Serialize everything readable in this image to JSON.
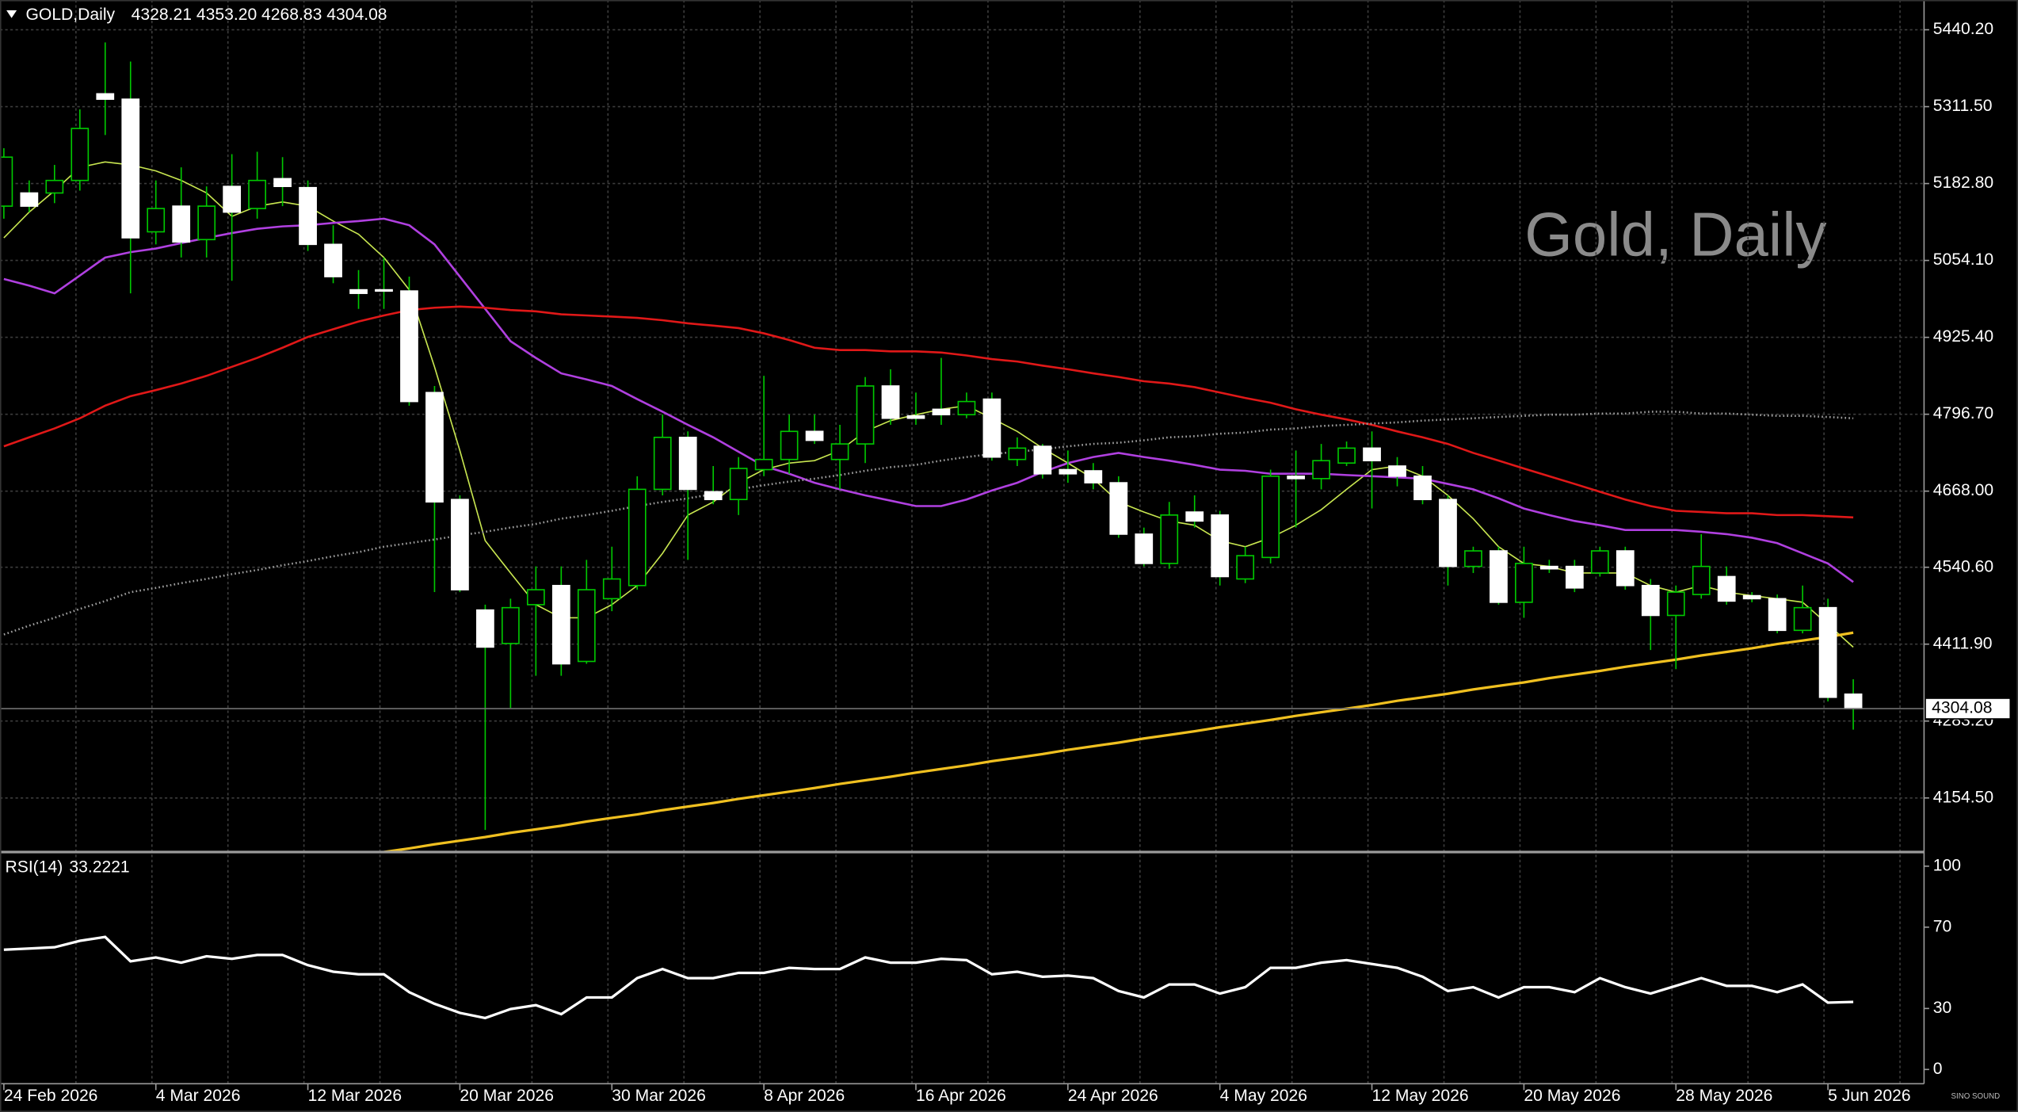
{
  "chart_data": {
    "type": "candlestick",
    "header": {
      "symbol": "GOLD,Daily",
      "ohlc": "4328.21 4353.20 4268.83 4304.08"
    },
    "watermark": "Gold, Daily",
    "logo": "SINO SOUND",
    "categories": [
      "24 Feb 2026",
      null,
      null,
      null,
      null,
      null,
      "4 Mar 2026",
      null,
      null,
      null,
      null,
      null,
      "12 Mar 2026",
      null,
      null,
      null,
      null,
      null,
      "20 Mar 2026",
      null,
      null,
      null,
      null,
      null,
      "30 Mar 2026",
      null,
      null,
      null,
      null,
      null,
      "8 Apr 2026",
      null,
      null,
      null,
      null,
      null,
      "16 Apr 2026",
      null,
      null,
      null,
      null,
      null,
      "24 Apr 2026",
      null,
      null,
      null,
      null,
      null,
      "4 May 2026",
      null,
      null,
      null,
      null,
      null,
      "12 May 2026",
      null,
      null,
      null,
      null,
      null,
      "20 May 2026",
      null,
      null,
      null,
      null,
      null,
      "28 May 2026",
      null,
      null,
      null,
      null,
      null,
      "5 Jun 2026",
      null
    ],
    "open": [
      5145,
      5167,
      5167,
      5188,
      5333,
      5324,
      5102,
      5145,
      5089,
      5178,
      5141,
      5191,
      5176,
      5081,
      5005,
      5005,
      5003,
      4833,
      4654,
      4469,
      4413,
      4478,
      4510,
      4383,
      4488,
      4510,
      4671,
      4758,
      4667,
      4654,
      4704,
      4721,
      4768,
      4721,
      4747,
      4844,
      4794,
      4805,
      4796,
      4822,
      4721,
      4743,
      4704,
      4702,
      4682,
      4596,
      4547,
      4633,
      4628,
      4521,
      4557,
      4693,
      4689,
      4715,
      4740,
      4710,
      4693,
      4654,
      4542,
      4568,
      4482,
      4542,
      4542,
      4531,
      4568,
      4510,
      4460,
      4495,
      4525,
      4493,
      4488,
      4435,
      4473,
      4328.21
    ],
    "high": [
      5242,
      5188,
      5214,
      5307,
      5419,
      5387,
      5188,
      5210,
      5178,
      5232,
      5236,
      5227,
      5188,
      5113,
      5038,
      5059,
      5027,
      4844,
      4661,
      4478,
      4488,
      4542,
      4542,
      4553,
      4575,
      4693,
      4796,
      4768,
      4710,
      4725,
      4861,
      4796,
      4796,
      4779,
      4859,
      4872,
      4833,
      4891,
      4833,
      4833,
      4758,
      4747,
      4736,
      4715,
      4693,
      4607,
      4650,
      4661,
      4635,
      4575,
      4704,
      4736,
      4747,
      4751,
      4768,
      4725,
      4710,
      4661,
      4575,
      4575,
      4575,
      4553,
      4553,
      4575,
      4575,
      4521,
      4510,
      4596,
      4542,
      4499,
      4495,
      4510,
      4488,
      4353.2
    ],
    "low": [
      5124,
      5135,
      5150,
      5171,
      5264,
      4999,
      5081,
      5059,
      5059,
      5020,
      5124,
      5145,
      5070,
      5016,
      4973,
      4973,
      4811,
      4499,
      4499,
      4101,
      4305,
      4359,
      4359,
      4379,
      4467,
      4503,
      4661,
      4553,
      4646,
      4628,
      4693,
      4697,
      4747,
      4671,
      4715,
      4779,
      4779,
      4779,
      4790,
      4719,
      4710,
      4689,
      4682,
      4671,
      4590,
      4542,
      4538,
      4607,
      4510,
      4514,
      4547,
      4607,
      4671,
      4710,
      4639,
      4676,
      4646,
      4510,
      4531,
      4478,
      4456,
      4531,
      4499,
      4525,
      4503,
      4402,
      4370,
      4488,
      4478,
      4482,
      4430,
      4430,
      4316,
      4268.83
    ],
    "close": [
      5227,
      5145,
      5188,
      5275,
      5324,
      5092,
      5141,
      5085,
      5145,
      5135,
      5188,
      5178,
      5081,
      5027,
      4999,
      5003,
      4818,
      4650,
      4503,
      4407,
      4473,
      4503,
      4379,
      4503,
      4521,
      4671,
      4758,
      4671,
      4654,
      4706,
      4721,
      4768,
      4753,
      4747,
      4844,
      4790,
      4790,
      4796,
      4818,
      4725,
      4740,
      4697,
      4697,
      4682,
      4596,
      4547,
      4628,
      4618,
      4525,
      4560,
      4693,
      4689,
      4719,
      4740,
      4719,
      4693,
      4654,
      4542,
      4568,
      4482,
      4547,
      4538,
      4506,
      4568,
      4510,
      4460,
      4499,
      4542,
      4484,
      4488,
      4435,
      4473,
      4323,
      4304.08
    ],
    "up_color": "#000000",
    "down_color": "#ffffff",
    "wick_color": "#00c800",
    "series": [
      {
        "color": "#c8e650",
        "values": [
          5092,
          5135,
          5171,
          5210,
          5219,
          5214,
          5204,
          5188,
          5167,
          5128,
          5145,
          5152,
          5145,
          5120,
          5098,
          5059,
          5005,
          4876,
          4736,
          4585,
          4531,
          4478,
          4456,
          4456,
          4478,
          4510,
          4564,
          4628,
          4650,
          4682,
          4704,
          4715,
          4719,
          4736,
          4768,
          4786,
          4796,
          4805,
          4811,
          4790,
          4768,
          4740,
          4715,
          4689,
          4650,
          4633,
          4618,
          4611,
          4585,
          4575,
          4590,
          4611,
          4637,
          4671,
          4704,
          4710,
          4693,
          4661,
          4622,
          4575,
          4547,
          4542,
          4531,
          4531,
          4531,
          4510,
          4499,
          4510,
          4499,
          4493,
          4488,
          4482,
          4445,
          4407
        ]
      },
      {
        "color": "#b040e0",
        "values": [
          5023,
          5012,
          4999,
          5029,
          5059,
          5068,
          5074,
          5083,
          5092,
          5100,
          5107,
          5111,
          5113,
          5117,
          5120,
          5124,
          5113,
          5081,
          5027,
          4973,
          4919,
          4891,
          4865,
          4855,
          4844,
          4822,
          4801,
          4779,
          4758,
          4734,
          4710,
          4697,
          4682,
          4671,
          4661,
          4652,
          4643,
          4643,
          4654,
          4669,
          4682,
          4700,
          4715,
          4725,
          4732,
          4725,
          4719,
          4712,
          4704,
          4702,
          4697,
          4697,
          4697,
          4695,
          4693,
          4691,
          4689,
          4680,
          4671,
          4656,
          4639,
          4628,
          4618,
          4611,
          4603,
          4603,
          4603,
          4600,
          4596,
          4590,
          4581,
          4564,
          4547,
          4516
        ]
      },
      {
        "color": "#e01818",
        "values": [
          4743,
          4758,
          4773,
          4790,
          4811,
          4827,
          4837,
          4848,
          4861,
          4876,
          4891,
          4908,
          4926,
          4939,
          4952,
          4962,
          4971,
          4975,
          4977,
          4975,
          4971,
          4969,
          4964,
          4962,
          4960,
          4958,
          4954,
          4949,
          4945,
          4941,
          4932,
          4921,
          4908,
          4904,
          4904,
          4902,
          4902,
          4900,
          4895,
          4889,
          4885,
          4878,
          4872,
          4865,
          4859,
          4852,
          4848,
          4842,
          4833,
          4824,
          4816,
          4805,
          4796,
          4788,
          4779,
          4768,
          4758,
          4747,
          4732,
          4719,
          4706,
          4693,
          4680,
          4667,
          4654,
          4643,
          4635,
          4633,
          4631,
          4631,
          4628,
          4628,
          4626,
          4624
        ]
      },
      {
        "color": "#a0a0a0",
        "dashed": true,
        "values": [
          4428,
          4443,
          4456,
          4471,
          4484,
          4499,
          4506,
          4514,
          4521,
          4529,
          4536,
          4544,
          4551,
          4559,
          4566,
          4575,
          4581,
          4587,
          4594,
          4600,
          4607,
          4613,
          4622,
          4628,
          4635,
          4643,
          4650,
          4656,
          4663,
          4671,
          4678,
          4684,
          4689,
          4695,
          4702,
          4708,
          4712,
          4719,
          4725,
          4730,
          4734,
          4738,
          4743,
          4747,
          4749,
          4753,
          4758,
          4760,
          4764,
          4766,
          4771,
          4773,
          4777,
          4779,
          4781,
          4783,
          4786,
          4788,
          4790,
          4792,
          4794,
          4796,
          4796,
          4798,
          4798,
          4801,
          4801,
          4798,
          4798,
          4796,
          4794,
          4794,
          4792,
          4790
        ]
      },
      {
        "color": "#f0c020",
        "values": [
          null,
          null,
          null,
          null,
          null,
          null,
          null,
          null,
          null,
          null,
          null,
          null,
          null,
          null,
          null,
          4064,
          4070,
          4077,
          4083,
          4089,
          4096,
          4102,
          4108,
          4115,
          4121,
          4127,
          4134,
          4140,
          4146,
          4153,
          4159,
          4165,
          4171,
          4178,
          4184,
          4190,
          4197,
          4203,
          4209,
          4216,
          4222,
          4228,
          4235,
          4241,
          4247,
          4254,
          4260,
          4266,
          4273,
          4279,
          4285,
          4292,
          4298,
          4304,
          4310,
          4317,
          4323,
          4329,
          4336,
          4342,
          4348,
          4355,
          4361,
          4367,
          4374,
          4380,
          4386,
          4393,
          4399,
          4405,
          4412,
          4418,
          4424,
          4431
        ]
      }
    ],
    "ylim": [
      4064,
      5490
    ],
    "yticks": [
      {
        "value": 5440.2,
        "label": "5440.20"
      },
      {
        "value": 5311.5,
        "label": "5311.50"
      },
      {
        "value": 5182.8,
        "label": "5182.80"
      },
      {
        "value": 5054.1,
        "label": "5054.10"
      },
      {
        "value": 4925.4,
        "label": "4925.40"
      },
      {
        "value": 4796.7,
        "label": "4796.70"
      },
      {
        "value": 4668,
        "label": "4668.00"
      },
      {
        "value": 4540.6,
        "label": "4540.60"
      },
      {
        "value": 4411.9,
        "label": "4411.90"
      },
      {
        "value": 4283.2,
        "label": "4283.20"
      },
      {
        "value": 4154.5,
        "label": "4154.50"
      }
    ],
    "grid": true,
    "rsi": {
      "label": "RSI(14)",
      "color": "#ffffff",
      "values": [
        58.9,
        59.5,
        60.1,
        63.3,
        65.2,
        53.2,
        55.1,
        52.5,
        55.7,
        54.4,
        56.3,
        56.3,
        51.3,
        48.1,
        46.8,
        46.8,
        38.0,
        32.3,
        27.8,
        25.3,
        29.7,
        31.6,
        27.2,
        35.4,
        35.4,
        44.9,
        49.4,
        44.9,
        44.9,
        47.5,
        47.5,
        50.0,
        49.4,
        49.4,
        55.1,
        52.5,
        52.5,
        54.4,
        53.8,
        46.8,
        48.1,
        45.6,
        46.2,
        44.9,
        38.6,
        35.4,
        41.8,
        41.8,
        37.3,
        40.5,
        50.0,
        50.0,
        52.5,
        53.8,
        51.9,
        50.0,
        45.6,
        38.6,
        40.5,
        35.4,
        40.5,
        40.5,
        38.0,
        44.9,
        40.5,
        37.3,
        41.1,
        44.9,
        41.1,
        41.1,
        38.0,
        41.8,
        32.9,
        33.2221
      ],
      "ylim": [
        -7,
        105.7
      ],
      "yticks": [
        0,
        30,
        70,
        100
      ]
    }
  }
}
